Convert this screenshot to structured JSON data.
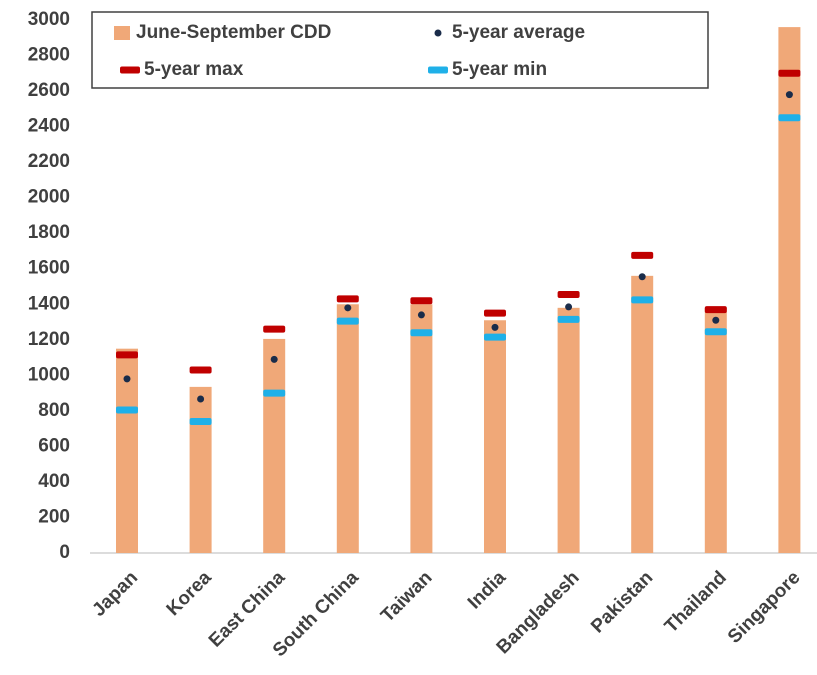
{
  "chart_data": {
    "type": "bar",
    "categories": [
      "Japan",
      "Korea",
      "East China",
      "South China",
      "Taiwan",
      "India",
      "Bangladesh",
      "Pakistan",
      "Thailand",
      "Singapore"
    ],
    "series": [
      {
        "name": "June-September CDD",
        "color": "#f0a878",
        "style": "bar",
        "values": [
          1150,
          935,
          1205,
          1400,
          1400,
          1310,
          1380,
          1560,
          1380,
          2960
        ]
      },
      {
        "name": "5-year average",
        "color": "#1a2c4a",
        "style": "dot",
        "values": [
          980,
          867,
          1090,
          1380,
          1340,
          1270,
          1385,
          1555,
          1310,
          2580
        ]
      },
      {
        "name": "5-year max",
        "color": "#c00000",
        "style": "dash",
        "values": [
          1115,
          1030,
          1260,
          1430,
          1420,
          1350,
          1455,
          1675,
          1370,
          2700
        ]
      },
      {
        "name": "5-year min",
        "color": "#1fb0e8",
        "style": "dash",
        "values": [
          805,
          740,
          900,
          1305,
          1240,
          1215,
          1315,
          1425,
          1245,
          2450
        ]
      }
    ],
    "ylim": [
      0,
      3000
    ],
    "yticks": [
      0,
      200,
      400,
      600,
      800,
      1000,
      1200,
      1400,
      1600,
      1800,
      2000,
      2200,
      2400,
      2600,
      2800,
      3000
    ],
    "grid": false,
    "legend": "top"
  }
}
